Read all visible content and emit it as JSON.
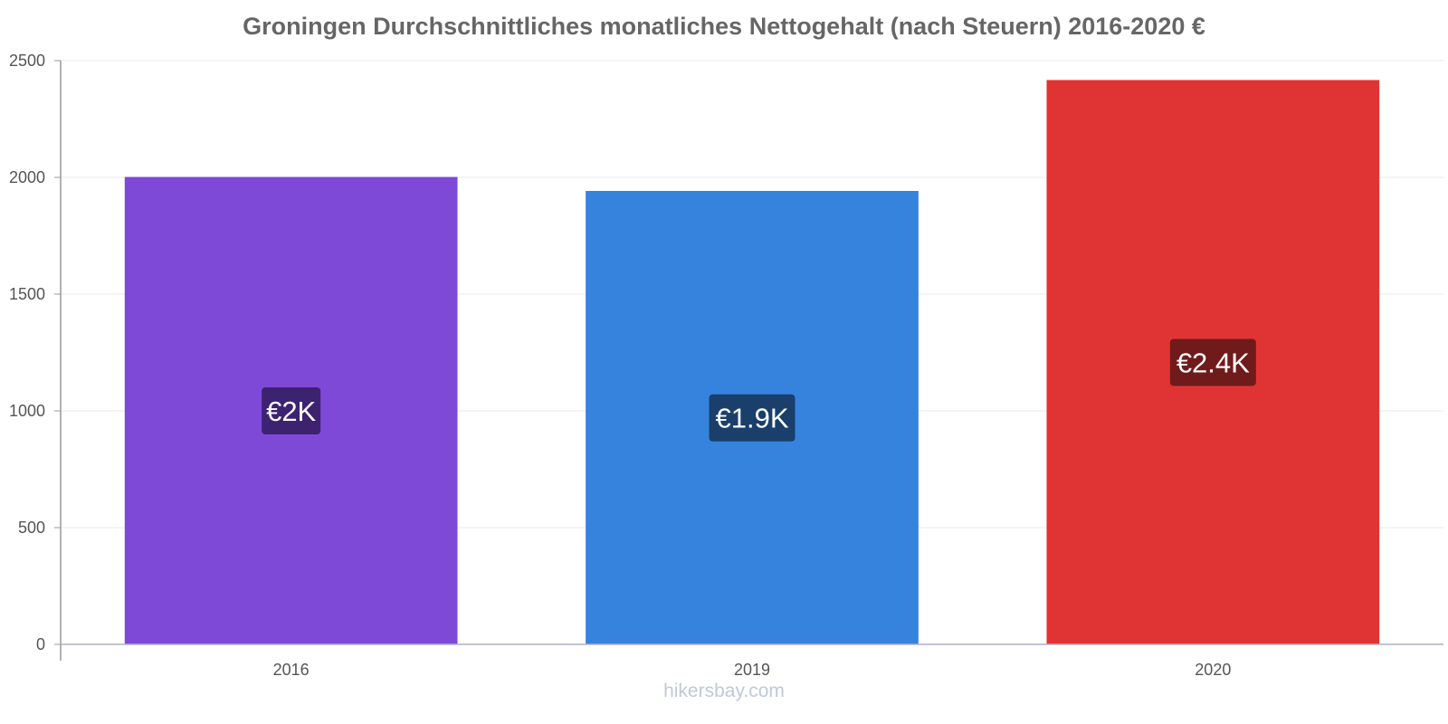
{
  "chart_data": {
    "type": "bar",
    "title": "Groningen Durchschnittliches monatliches Nettogehalt (nach Steuern) 2016-2020 €",
    "categories": [
      "2016",
      "2019",
      "2020"
    ],
    "values": [
      2000,
      1940,
      2415
    ],
    "data_labels": [
      "€2K",
      "€1.9K",
      "€2.4K"
    ],
    "colors": [
      "#7f49d8",
      "#3683de",
      "#e03434"
    ],
    "label_bg_colors": [
      "#3d2270",
      "#1a3f6b",
      "#701b1b"
    ],
    "ylim": [
      0,
      2500
    ],
    "yticks": [
      0,
      500,
      1000,
      1500,
      2000,
      2500
    ],
    "xlabel": "",
    "ylabel": "",
    "grid": true,
    "legend": "none"
  },
  "watermark": "hikersbay.com"
}
